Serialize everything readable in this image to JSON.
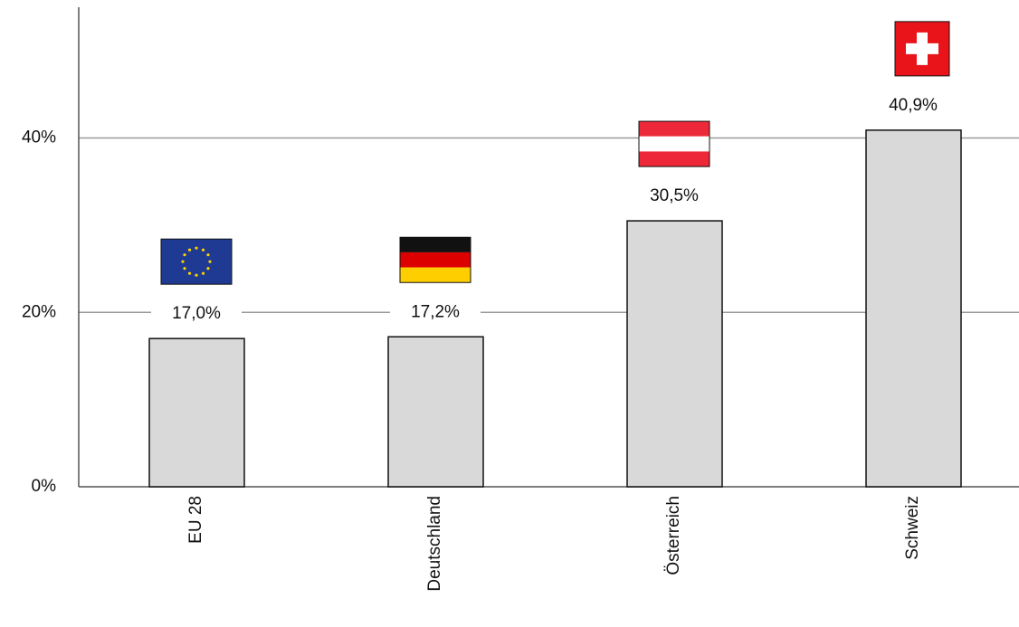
{
  "chart_data": {
    "type": "bar",
    "categories": [
      "EU 28",
      "Deutschland",
      "Österreich",
      "Schweiz"
    ],
    "values": [
      17.0,
      17.2,
      30.5,
      40.9
    ],
    "value_labels": [
      "17,0%",
      "17,2%",
      "30,5%",
      "40,9%"
    ],
    "color": "#d9d9d9",
    "ylim": [
      0,
      55
    ],
    "yticks": [
      {
        "value": 0,
        "label": "0%"
      },
      {
        "value": 20,
        "label": "20%"
      },
      {
        "value": 40,
        "label": "40%"
      }
    ],
    "grid": true
  }
}
